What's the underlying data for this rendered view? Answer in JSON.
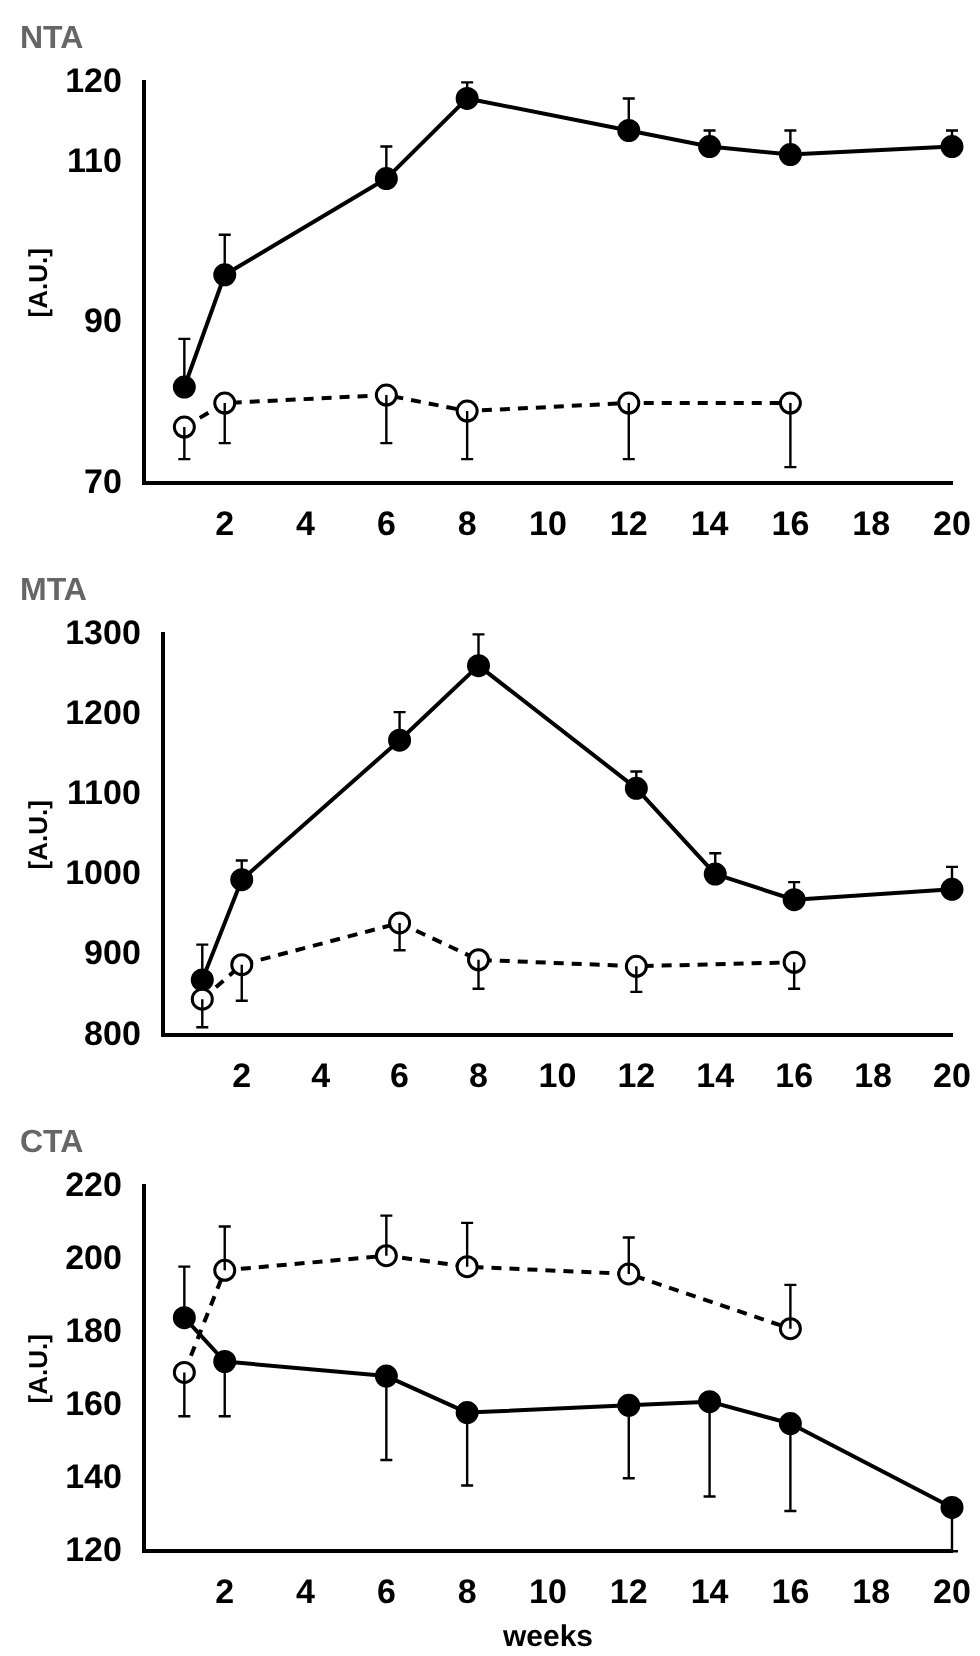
{
  "chart_data": [
    {
      "type": "line",
      "title": "NTA",
      "ylabel": "[A.U.]",
      "xlim": [
        0,
        20
      ],
      "xticks": [
        2,
        4,
        6,
        8,
        10,
        12,
        14,
        16,
        18,
        20
      ],
      "ylim": [
        70,
        120
      ],
      "yticks": [
        70,
        90,
        110,
        120
      ],
      "grid": false,
      "legend": false,
      "marker": "circle",
      "series": [
        {
          "color": "#000000",
          "line_style": "solid",
          "x": [
            1,
            2,
            6,
            8,
            12,
            14,
            16,
            20
          ],
          "values": [
            82,
            96,
            108,
            118,
            114,
            112,
            111,
            112
          ],
          "errors": [
            [
              82,
              88
            ],
            [
              96,
              101
            ],
            [
              108,
              112
            ],
            [
              118,
              120
            ],
            [
              114,
              118
            ],
            [
              112,
              114
            ],
            [
              111,
              114
            ],
            [
              112,
              114
            ]
          ]
        },
        {
          "color": "#000000",
          "line_style": "dashed",
          "x": [
            1,
            2,
            6,
            8,
            12,
            16
          ],
          "values": [
            77,
            80,
            81,
            79,
            80,
            80
          ],
          "errors": [
            [
              73,
              77
            ],
            [
              75,
              80
            ],
            [
              75,
              81
            ],
            [
              73,
              79
            ],
            [
              73,
              80
            ],
            [
              72,
              80
            ]
          ]
        }
      ]
    },
    {
      "type": "line",
      "title": "MTA",
      "ylabel": "[A.U.]",
      "xlim": [
        0,
        20
      ],
      "xticks": [
        2,
        4,
        6,
        8,
        10,
        12,
        14,
        16,
        18,
        20
      ],
      "ylim": [
        800,
        1300
      ],
      "yticks": [
        800,
        900,
        1000,
        1100,
        1200,
        1300
      ],
      "grid": false,
      "legend": false,
      "marker": "circle",
      "series": [
        {
          "color": "#000000",
          "line_style": "solid",
          "x": [
            1,
            2,
            6,
            8,
            12,
            14,
            16,
            20
          ],
          "values": [
            869,
            994,
            1168,
            1261,
            1108,
            1001,
            969,
            982
          ],
          "errors": [
            [
              869,
              913
            ],
            [
              994,
              1018
            ],
            [
              1168,
              1203
            ],
            [
              1261,
              1300
            ],
            [
              1108,
              1129
            ],
            [
              1001,
              1027
            ],
            [
              969,
              991
            ],
            [
              982,
              1010
            ]
          ]
        },
        {
          "color": "#000000",
          "line_style": "dashed",
          "x": [
            1,
            2,
            6,
            8,
            12,
            16
          ],
          "values": [
            845,
            888,
            940,
            894,
            886,
            891
          ],
          "errors": [
            [
              810,
              845
            ],
            [
              843,
              888
            ],
            [
              906,
              940
            ],
            [
              858,
              894
            ],
            [
              854,
              886
            ],
            [
              858,
              891
            ]
          ]
        }
      ]
    },
    {
      "type": "line",
      "title": "CTA",
      "xlabel": "weeks",
      "ylabel": "[A.U.]",
      "xlim": [
        0,
        20
      ],
      "xticks": [
        2,
        4,
        6,
        8,
        10,
        12,
        14,
        16,
        18,
        20
      ],
      "ylim": [
        120,
        220
      ],
      "yticks": [
        120,
        140,
        160,
        180,
        200,
        220
      ],
      "grid": false,
      "legend": false,
      "marker": "circle",
      "series": [
        {
          "color": "#000000",
          "line_style": "solid",
          "x": [
            1,
            2,
            6,
            8,
            12,
            14,
            16,
            20
          ],
          "values": [
            184,
            172,
            168,
            158,
            160,
            161,
            155,
            132
          ],
          "errors": [
            [
              184,
              198
            ],
            [
              157,
              172
            ],
            [
              145,
              168
            ],
            [
              138,
              158
            ],
            [
              140,
              160
            ],
            [
              135,
              161
            ],
            [
              131,
              155
            ],
            [
              120,
              132
            ]
          ]
        },
        {
          "color": "#000000",
          "line_style": "dashed",
          "x": [
            1,
            2,
            6,
            8,
            12,
            16
          ],
          "values": [
            169,
            197,
            201,
            198,
            196,
            181
          ],
          "errors": [
            [
              157,
              169
            ],
            [
              197,
              209
            ],
            [
              201,
              212
            ],
            [
              198,
              210
            ],
            [
              196,
              206
            ],
            [
              181,
              193
            ]
          ]
        }
      ]
    }
  ]
}
